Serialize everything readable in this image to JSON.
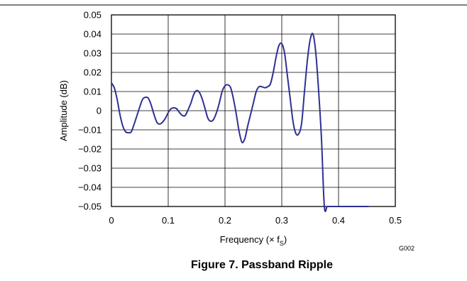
{
  "chart_data": {
    "type": "line",
    "title": "",
    "caption": "Figure 7. Passband Ripple",
    "figure_id": "G002",
    "xlabel": {
      "main": "Frequency (× f",
      "sub": "S",
      "close": ")"
    },
    "ylabel": "Amplitude (dB)",
    "xlim": [
      0,
      0.5
    ],
    "ylim": [
      -0.05,
      0.05
    ],
    "grid": true,
    "x_ticks": [
      {
        "value": 0,
        "label": "0"
      },
      {
        "value": 0.1,
        "label": "0.1"
      },
      {
        "value": 0.2,
        "label": "0.2"
      },
      {
        "value": 0.3,
        "label": "0.3"
      },
      {
        "value": 0.4,
        "label": "0.4"
      },
      {
        "value": 0.5,
        "label": "0.5"
      }
    ],
    "y_ticks": [
      {
        "value": 0.05,
        "label": "0.05"
      },
      {
        "value": 0.04,
        "label": "0.04"
      },
      {
        "value": 0.03,
        "label": "0.03"
      },
      {
        "value": 0.02,
        "label": "0.02"
      },
      {
        "value": 0.01,
        "label": "0.01"
      },
      {
        "value": 0,
        "label": "0"
      },
      {
        "value": -0.01,
        "label": "−0.01"
      },
      {
        "value": -0.02,
        "label": "−0.02"
      },
      {
        "value": -0.03,
        "label": "−0.03"
      },
      {
        "value": -0.04,
        "label": "−0.04"
      },
      {
        "value": -0.05,
        "label": "−0.05"
      }
    ],
    "series": [
      {
        "color": "#2e3192",
        "x": [
          0,
          0.005,
          0.01,
          0.015,
          0.02,
          0.025,
          0.03,
          0.035,
          0.04,
          0.045,
          0.05,
          0.055,
          0.06,
          0.065,
          0.07,
          0.075,
          0.08,
          0.085,
          0.09,
          0.095,
          0.1,
          0.105,
          0.11,
          0.115,
          0.12,
          0.125,
          0.13,
          0.135,
          0.14,
          0.145,
          0.15,
          0.155,
          0.16,
          0.165,
          0.17,
          0.175,
          0.18,
          0.185,
          0.19,
          0.195,
          0.2,
          0.205,
          0.21,
          0.215,
          0.22,
          0.225,
          0.23,
          0.235,
          0.24,
          0.245,
          0.25,
          0.255,
          0.26,
          0.265,
          0.27,
          0.275,
          0.28,
          0.285,
          0.29,
          0.295,
          0.3,
          0.305,
          0.31,
          0.315,
          0.32,
          0.325,
          0.33,
          0.335,
          0.34,
          0.345,
          0.35,
          0.355,
          0.36,
          0.365,
          0.37,
          0.375,
          0.38,
          0.385,
          0.39,
          0.395,
          0.4,
          0.405,
          0.41,
          0.415,
          0.42,
          0.425,
          0.43,
          0.435,
          0.44,
          0.445,
          0.448,
          0.45,
          0.452,
          0.453
        ],
        "y": [
          0.0145,
          0.012,
          0.006,
          -0.002,
          -0.008,
          -0.011,
          -0.0115,
          -0.011,
          -0.007,
          -0.0025,
          0.002,
          0.006,
          0.007,
          0.0065,
          0.003,
          -0.002,
          -0.006,
          -0.007,
          -0.006,
          -0.004,
          -0.001,
          0.001,
          0.0015,
          0.001,
          -0.001,
          -0.0025,
          -0.0025,
          0.0005,
          0.004,
          0.0085,
          0.0105,
          0.0095,
          0.006,
          0.001,
          -0.004,
          -0.0055,
          -0.0045,
          -0.001,
          0.004,
          0.01,
          0.013,
          0.0135,
          0.012,
          0.006,
          -0.002,
          -0.011,
          -0.0165,
          -0.0145,
          -0.008,
          -0.002,
          0.004,
          0.01,
          0.0125,
          0.0125,
          0.012,
          0.0125,
          0.014,
          0.02,
          0.028,
          0.034,
          0.035,
          0.03,
          0.018,
          0.006,
          -0.006,
          -0.012,
          -0.012,
          -0.0065,
          0.01,
          0.026,
          0.037,
          0.04,
          0.03,
          0.01,
          -0.015,
          -0.05,
          -0.05,
          -0.05,
          -0.05,
          -0.05,
          -0.05,
          -0.05,
          -0.05,
          -0.05,
          -0.05,
          -0.05,
          -0.05,
          -0.05,
          -0.05,
          -0.05,
          -0.05,
          -0.05,
          -0.05,
          -0.05
        ]
      }
    ]
  }
}
